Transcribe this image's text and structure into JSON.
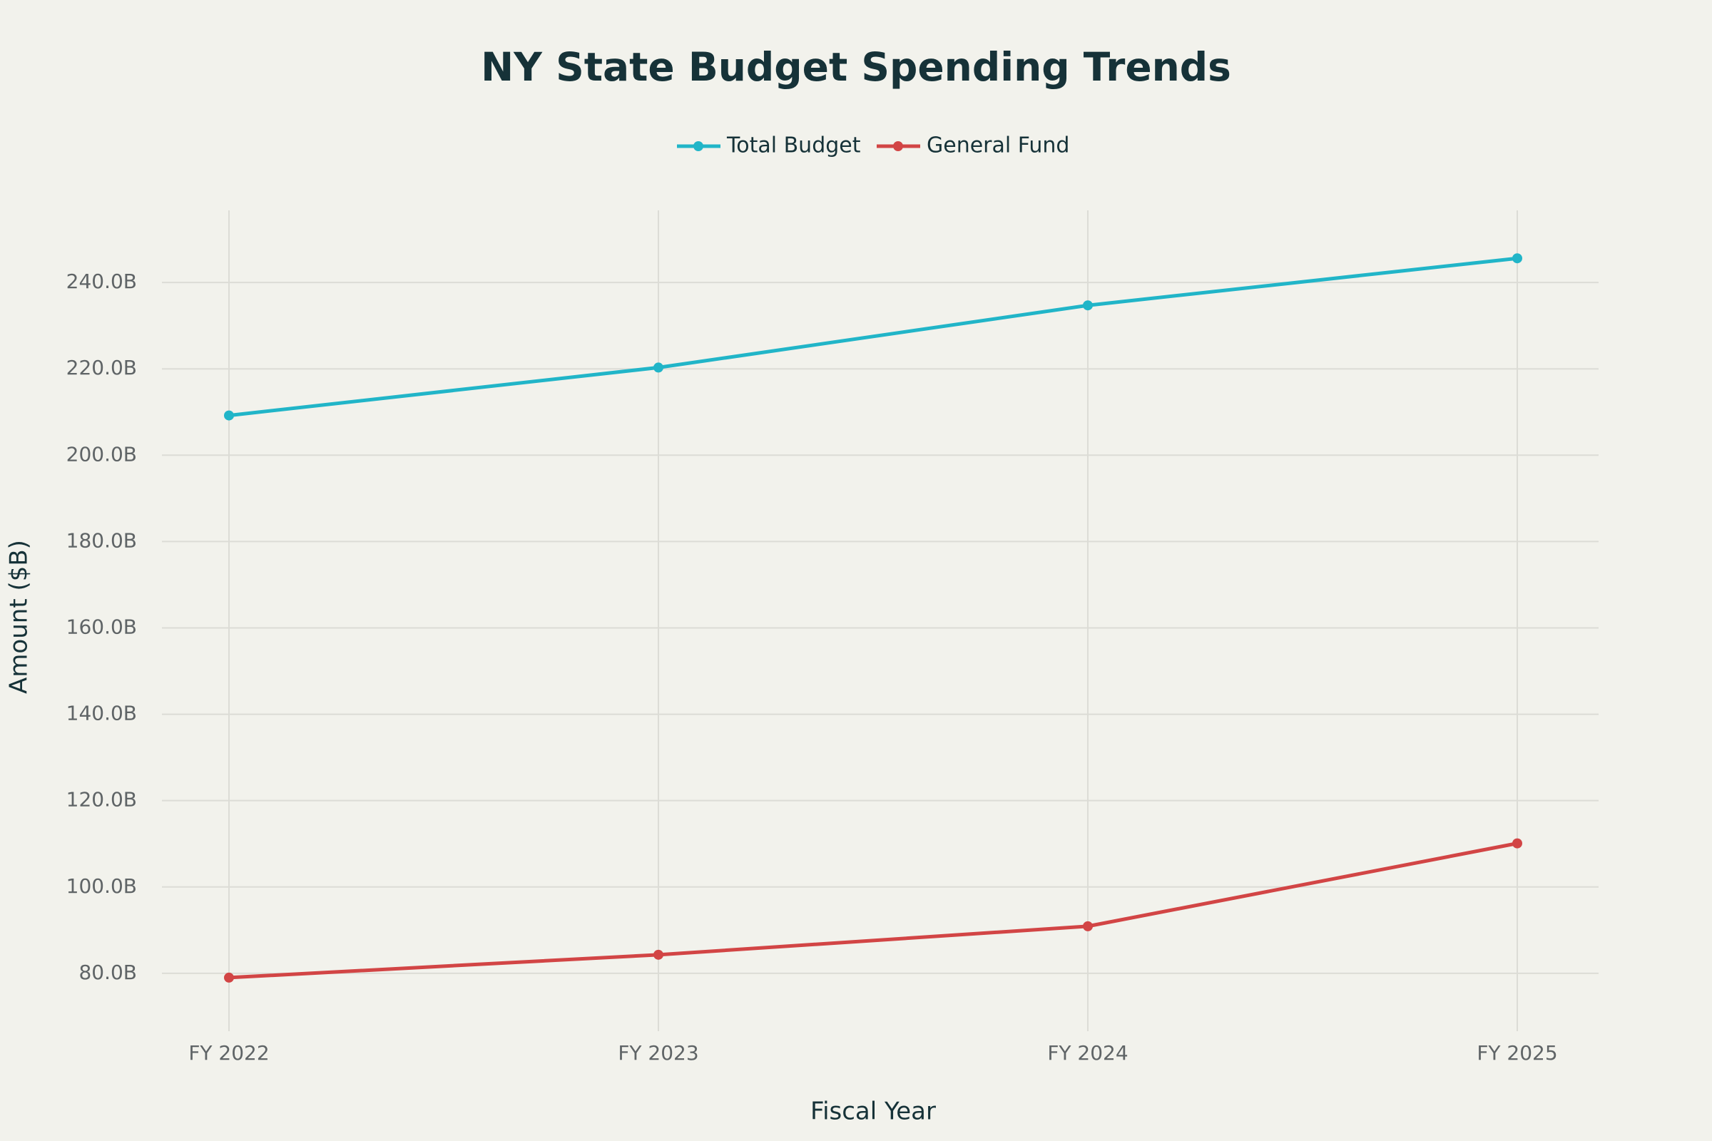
{
  "chart_data": {
    "type": "line",
    "title": "NY State Budget Spending Trends",
    "x_label": "Fiscal Year",
    "y_label": "Amount ($B)",
    "categories": [
      "FY 2022",
      "FY 2023",
      "FY 2024",
      "FY 2025"
    ],
    "series": [
      {
        "name": "Total Budget",
        "color": "#21b5c8",
        "values": [
          209.2,
          220.3,
          234.7,
          245.6
        ]
      },
      {
        "name": "General Fund",
        "color": "#d24545",
        "values": [
          79.0,
          84.3,
          90.9,
          110.1
        ]
      }
    ],
    "ylim": [
      66.6,
      256.7
    ],
    "yticks": [
      {
        "value": 80,
        "label": "80.0B"
      },
      {
        "value": 100,
        "label": "100.0B"
      },
      {
        "value": 120,
        "label": "120.0B"
      },
      {
        "value": 140,
        "label": "140.0B"
      },
      {
        "value": 160,
        "label": "160.0B"
      },
      {
        "value": 180,
        "label": "180.0B"
      },
      {
        "value": 200,
        "label": "200.0B"
      },
      {
        "value": 220,
        "label": "220.0B"
      },
      {
        "value": 240,
        "label": "240.0B"
      }
    ],
    "grid": true
  }
}
